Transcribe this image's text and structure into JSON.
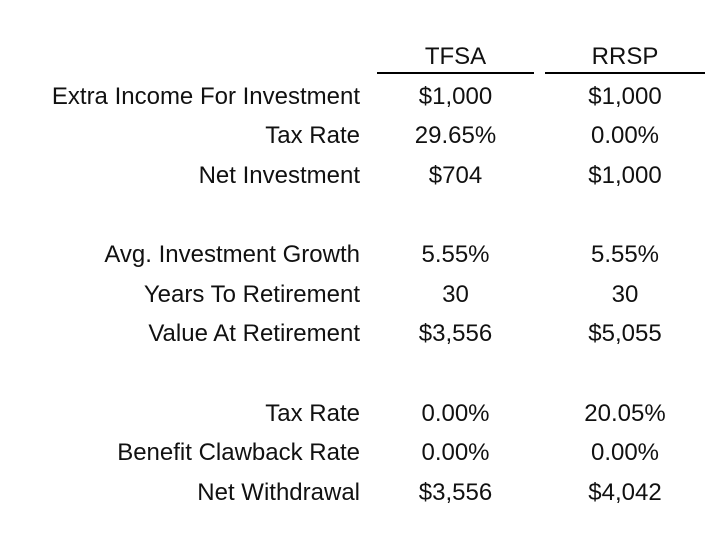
{
  "columns": {
    "tfsa": "TFSA",
    "rrsp": "RRSP"
  },
  "rows": [
    {
      "label": "Extra Income For Investment",
      "tfsa": "$1,000",
      "rrsp": "$1,000"
    },
    {
      "label": "Tax Rate",
      "tfsa": "29.65%",
      "rrsp": "0.00%"
    },
    {
      "label": "Net Investment",
      "tfsa": "$704",
      "rrsp": "$1,000"
    },
    {
      "label": "Avg. Investment Growth",
      "tfsa": "5.55%",
      "rrsp": "5.55%"
    },
    {
      "label": "Years To Retirement",
      "tfsa": "30",
      "rrsp": "30"
    },
    {
      "label": "Value At Retirement",
      "tfsa": "$3,556",
      "rrsp": "$5,055"
    },
    {
      "label": "Tax Rate",
      "tfsa": "0.00%",
      "rrsp": "20.05%"
    },
    {
      "label": "Benefit Clawback Rate",
      "tfsa": "0.00%",
      "rrsp": "0.00%"
    },
    {
      "label": "Net Withdrawal",
      "tfsa": "$3,556",
      "rrsp": "$4,042"
    }
  ]
}
